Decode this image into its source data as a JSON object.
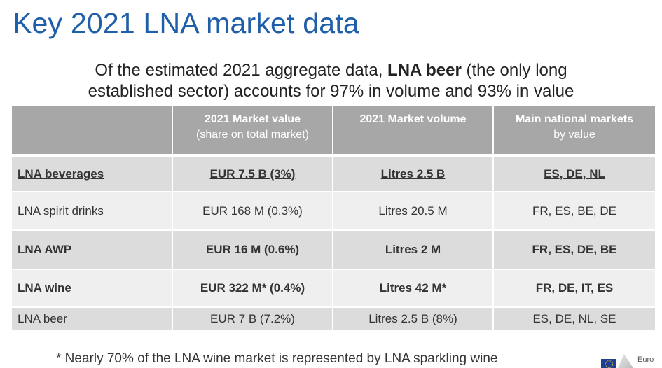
{
  "title": "Key 2021 LNA market data",
  "subtitle": {
    "line1_pre": "Of the estimated 2021 aggregate data, ",
    "line1_bold": "LNA beer",
    "line1_post": " (the only long",
    "line2": "established sector) accounts for 97% in volume and 93% in value"
  },
  "table": {
    "headers": [
      {
        "main": "",
        "sub": ""
      },
      {
        "main": "2021 Market value",
        "sub": "(share on total market)"
      },
      {
        "main": "2021 Market volume",
        "sub": ""
      },
      {
        "main": "Main national markets",
        "sub": "by value"
      }
    ],
    "rows": [
      [
        "LNA beverages",
        "EUR 7.5 B (3%)",
        "Litres 2.5 B",
        "ES, DE, NL"
      ],
      [
        "LNA spirit drinks",
        "EUR 168 M (0.3%)",
        "Litres 20.5 M",
        "FR, ES, BE, DE"
      ],
      [
        "LNA AWP",
        "EUR 16 M (0.6%)",
        "Litres 2 M",
        "FR, ES, DE, BE"
      ],
      [
        "LNA wine",
        "EUR 322 M* (0.4%)",
        "Litres 42 M*",
        "FR, DE, IT, ES"
      ],
      [
        "LNA beer",
        "EUR 7 B (7.2%)",
        "Litres 2.5 B (8%)",
        "ES, DE, NL, SE"
      ]
    ]
  },
  "footnote": "* Nearly 70% of the LNA wine market is represented by LNA sparkling wine",
  "logo": {
    "text": "Euro",
    "icon": "eu-flag-icon"
  },
  "colors": {
    "title": "#1f5ea8",
    "header_bg": "#a7a7a7",
    "row_dark": "#dcdcdc",
    "row_light": "#efefef"
  }
}
